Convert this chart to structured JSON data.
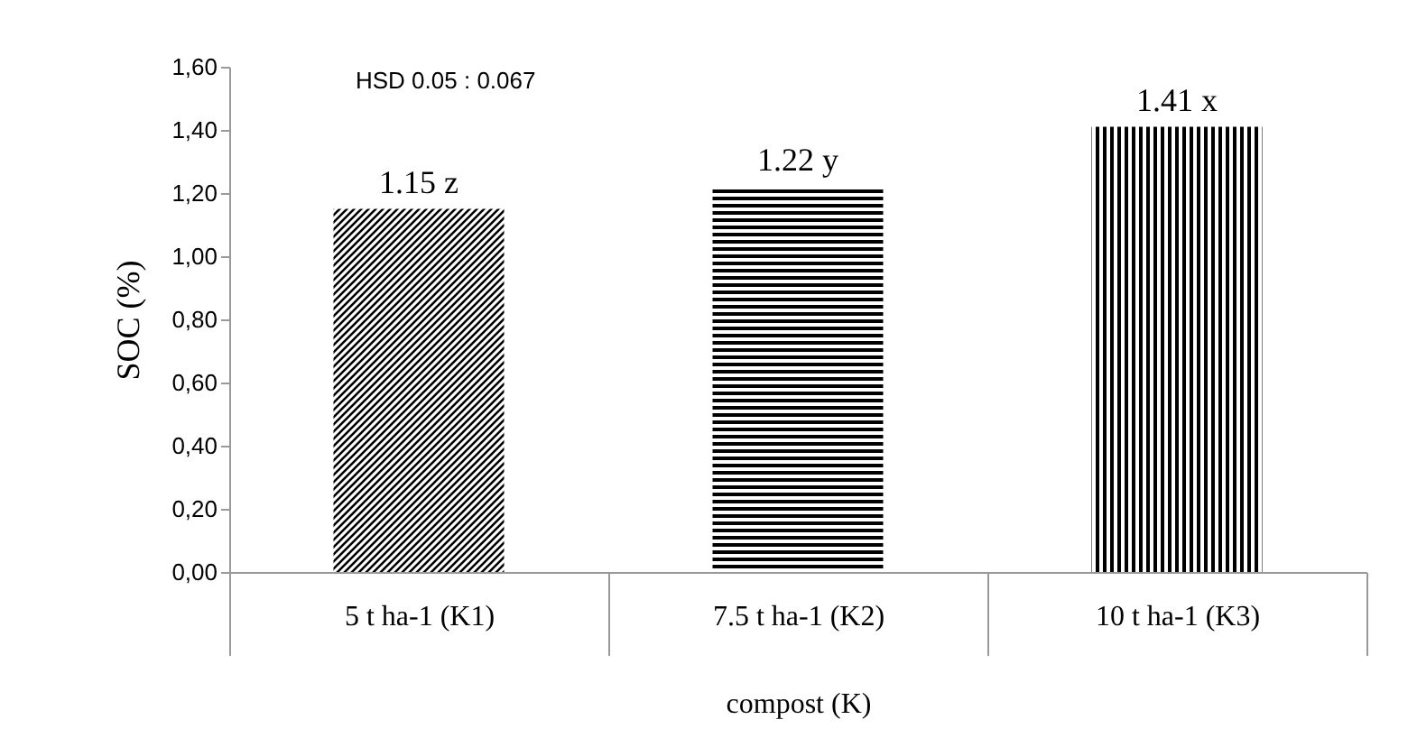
{
  "chart_data": {
    "type": "bar",
    "xlabel": "compost (K)",
    "ylabel": "SOC (%)",
    "categories": [
      "5 t ha-1 (K1)",
      "7.5 t ha-1 (K2)",
      "10 t ha-1 (K3)"
    ],
    "values": [
      1.15,
      1.22,
      1.41
    ],
    "colors": [
      "#000000",
      "#000000",
      "#000000"
    ],
    "value_labels": [
      "1.15 z",
      "1.22 y",
      "1.41 x"
    ],
    "ylim": [
      0,
      1.6
    ],
    "yticks": [
      {
        "value": 0,
        "label": "0,00"
      },
      {
        "value": 0.2,
        "label": "0,20"
      },
      {
        "value": 0.4,
        "label": "0,40"
      },
      {
        "value": 0.6,
        "label": "0,60"
      },
      {
        "value": 0.8,
        "label": "0,80"
      },
      {
        "value": 1.0,
        "label": "1,00"
      },
      {
        "value": 1.2,
        "label": "1,20"
      },
      {
        "value": 1.4,
        "label": "1,40"
      },
      {
        "value": 1.6,
        "label": "1,60"
      }
    ],
    "annotations": [
      "HSD 0.05 : 0.067"
    ],
    "grid": false
  }
}
